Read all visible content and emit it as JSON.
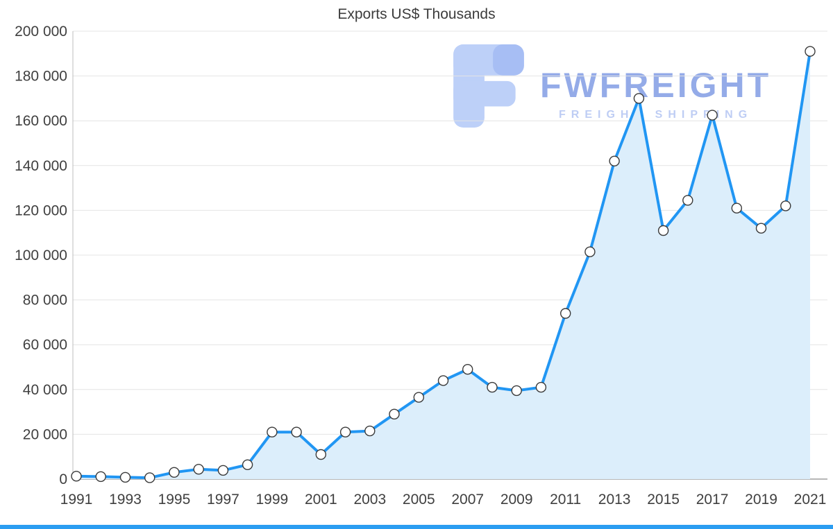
{
  "chart_data": {
    "type": "area",
    "title": "Exports US$ Thousands",
    "x": [
      1991,
      1992,
      1993,
      1994,
      1995,
      1996,
      1997,
      1998,
      1999,
      2000,
      2001,
      2002,
      2003,
      2004,
      2005,
      2006,
      2007,
      2008,
      2009,
      2010,
      2011,
      2012,
      2013,
      2014,
      2015,
      2016,
      2017,
      2018,
      2019,
      2020,
      2021
    ],
    "series": [
      {
        "name": "Exports US$ Thousands",
        "values": [
          1300,
          1100,
          800,
          600,
          3000,
          4400,
          3900,
          6400,
          21000,
          21000,
          11000,
          21000,
          21500,
          29000,
          36500,
          44000,
          49000,
          41000,
          39500,
          41000,
          74000,
          101500,
          142000,
          170000,
          111000,
          124500,
          162500,
          121000,
          112000,
          122000,
          191000
        ]
      }
    ],
    "ylim": [
      0,
      200000
    ],
    "y_ticks": [
      "0",
      "20 000",
      "40 000",
      "60 000",
      "80 000",
      "100 000",
      "120 000",
      "140 000",
      "160 000",
      "180 000",
      "200 000"
    ],
    "x_ticks": [
      "1991",
      "1993",
      "1995",
      "1997",
      "1999",
      "2001",
      "2003",
      "2005",
      "2007",
      "2009",
      "2011",
      "2013",
      "2015",
      "2017",
      "2019",
      "2021"
    ],
    "grid": true,
    "legend_position": "none",
    "colors": {
      "line": "#2196f3",
      "fill": "#dceefb",
      "marker_fill": "#ffffff",
      "marker_stroke": "#3a3a3a",
      "grid": "#e4e4e4",
      "axis": "#bdbdbd",
      "baseline": "#9e9e9e",
      "text": "#3f3f3f",
      "accent_bar": "#2b9df1"
    }
  },
  "watermark": {
    "brand": "FWFREIGHT",
    "subtitle": "FREIGHT SHIPPING",
    "logo": "fwfreight-logo",
    "logo_color": "#bdd0f8",
    "logo_accent_color": "#a7bef4"
  }
}
